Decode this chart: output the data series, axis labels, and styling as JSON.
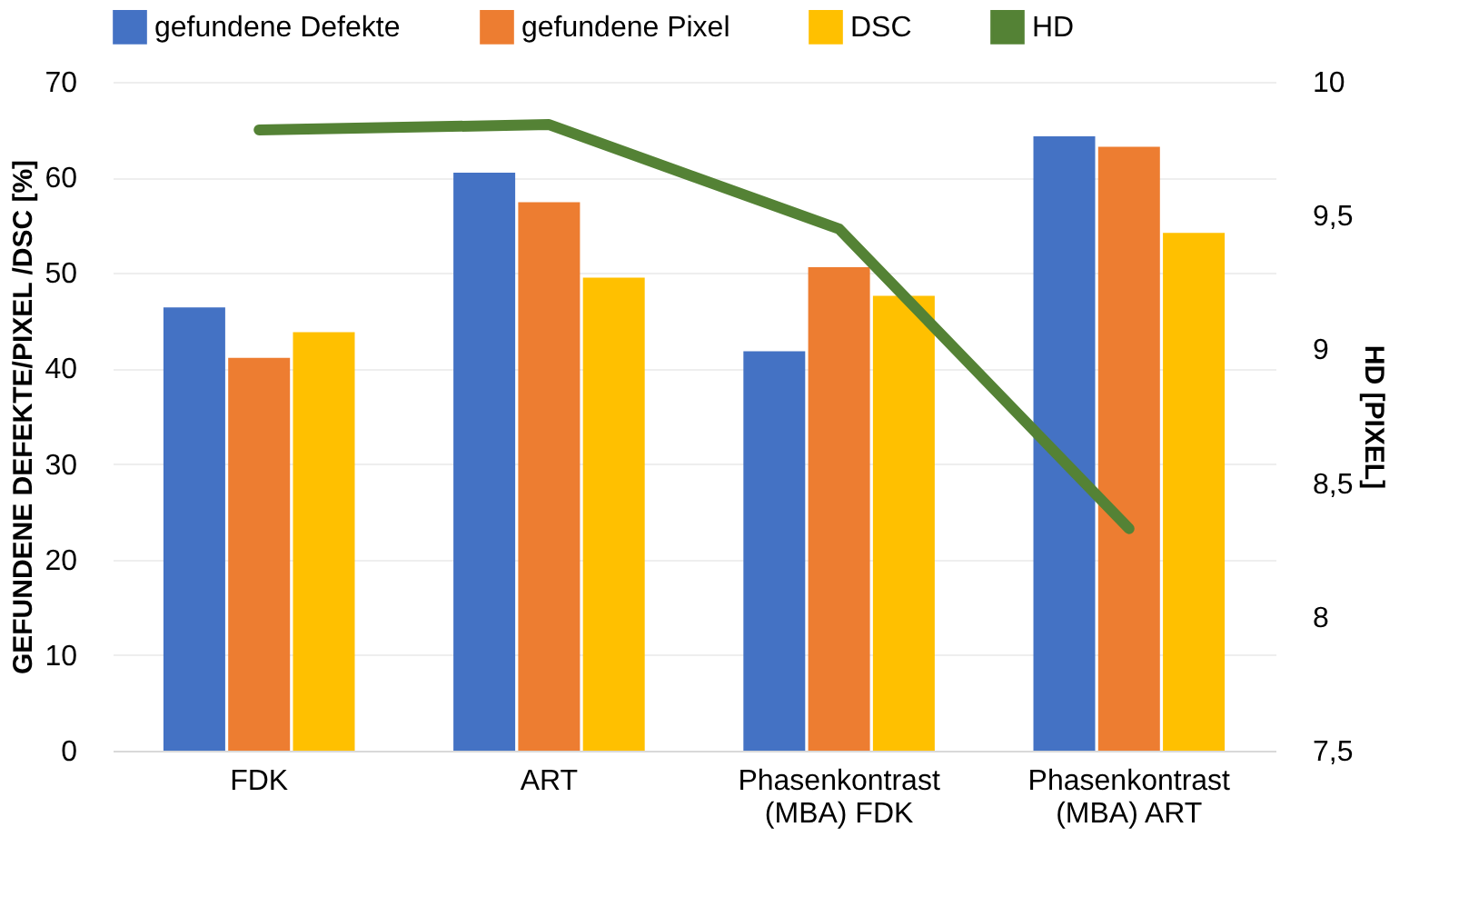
{
  "chart_data": {
    "type": "bar",
    "categories": [
      "FDK",
      "ART",
      "Phasenkontrast\n(MBA)      FDK",
      "Phasenkontrast\n(MBA)      ART"
    ],
    "series": [
      {
        "name": "gefundene Defekte",
        "color": "#4472c4",
        "values": [
          46.4,
          60.5,
          41.8,
          64.3
        ]
      },
      {
        "name": "gefundene Pixel",
        "color": "#ed7d31",
        "values": [
          41.1,
          57.4,
          50.6,
          63.2
        ]
      },
      {
        "name": "DSC",
        "color": "#ffc000",
        "values": [
          43.8,
          49.5,
          47.6,
          54.2
        ]
      },
      {
        "name": "HD",
        "color": "#548235",
        "type": "line",
        "axis": "y2",
        "values": [
          9.82,
          9.84,
          9.45,
          8.33
        ]
      }
    ],
    "ylabel": "GEFUNDENE DEFEKTE/PIXEL /DSC [%]",
    "y2label": "HD [PIXEL]",
    "ylim": [
      0,
      70
    ],
    "yticks": [
      0,
      10,
      20,
      30,
      40,
      50,
      60,
      70
    ],
    "y2lim": [
      7.5,
      10
    ],
    "y2ticks": [
      {
        "value": 7.5,
        "label": "7,5"
      },
      8,
      {
        "value": 8.5,
        "label": "8,5"
      },
      9,
      {
        "value": 9.5,
        "label": "9,5"
      },
      10
    ],
    "grid": "y",
    "legend": "top",
    "marker": "none",
    "line_style": "solid"
  }
}
